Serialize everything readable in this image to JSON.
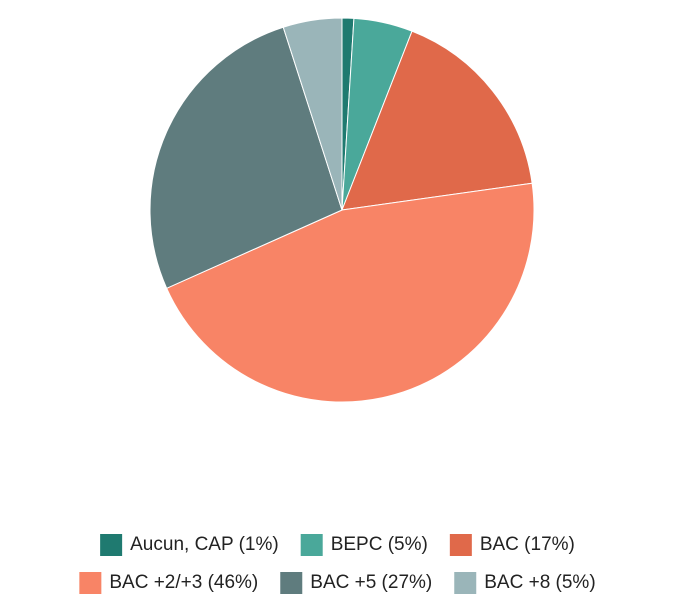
{
  "chart_data": {
    "type": "pie",
    "categories": [
      "Aucun, CAP (1%)",
      "BEPC (5%)",
      "BAC (17%)",
      "BAC +2/+3 (46%)",
      "BAC +5 (27%)",
      "BAC +8 (5%)"
    ],
    "values": [
      1,
      5,
      17,
      46,
      27,
      5
    ],
    "colors": [
      "#1f7a70",
      "#4aa89a",
      "#e0694a",
      "#f88466",
      "#5f7c7e",
      "#9ab5b9"
    ],
    "legend": "bottom"
  }
}
